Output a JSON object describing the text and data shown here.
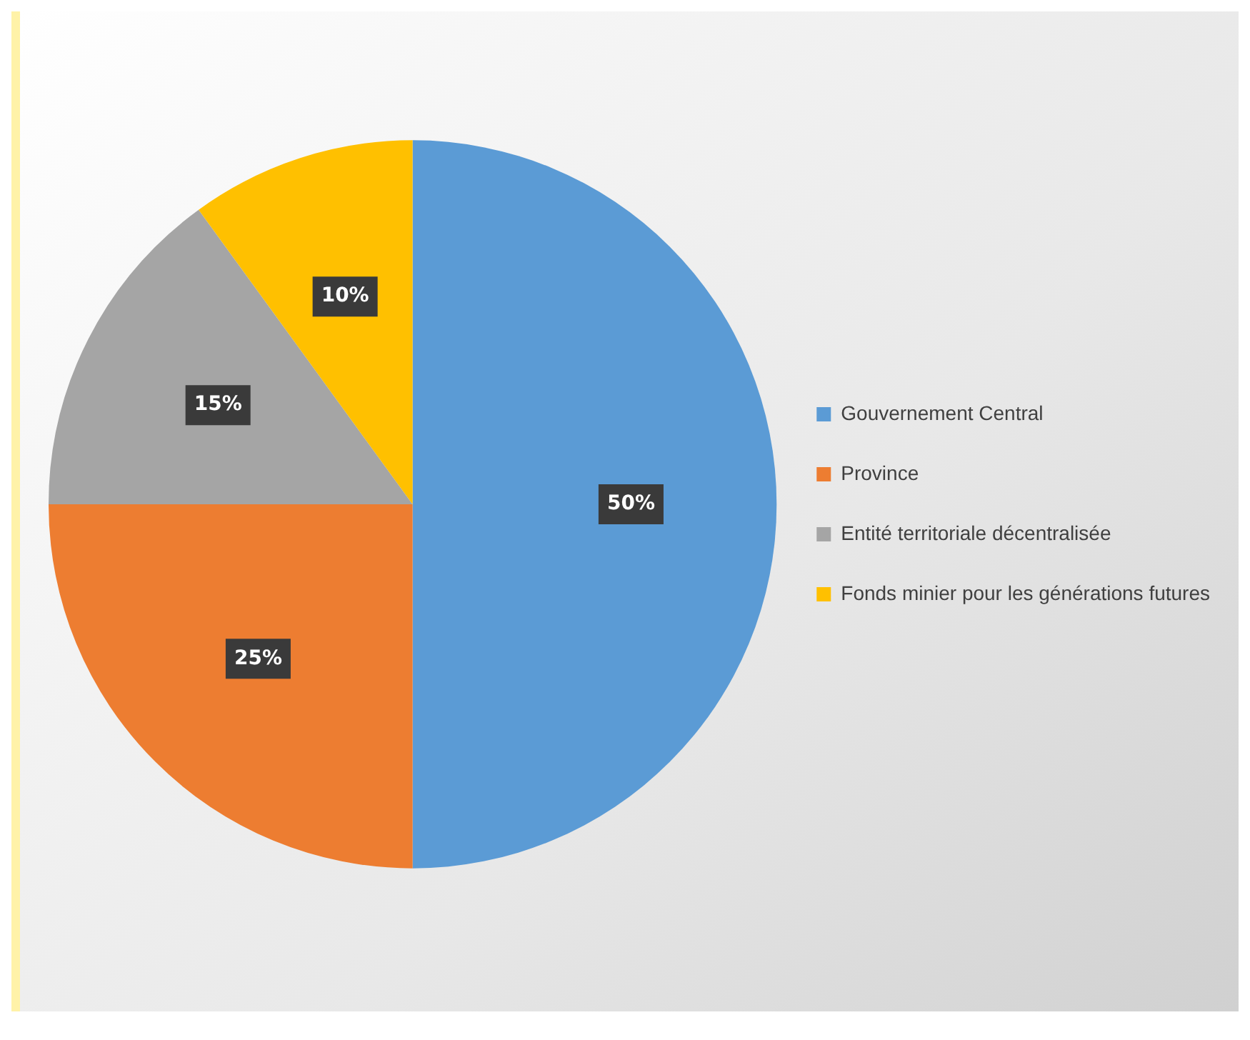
{
  "chart_data": {
    "type": "pie",
    "categories": [
      "Gouvernement Central",
      "Province",
      "Entité territoriale décentralisée",
      "Fonds minier pour les générations futures"
    ],
    "values": [
      50,
      25,
      15,
      10
    ],
    "colors": [
      "#5b9bd5",
      "#ed7d31",
      "#a5a5a5",
      "#ffc000"
    ],
    "value_labels": [
      "50%",
      "25%",
      "15%",
      "10%"
    ],
    "legend": "right"
  }
}
